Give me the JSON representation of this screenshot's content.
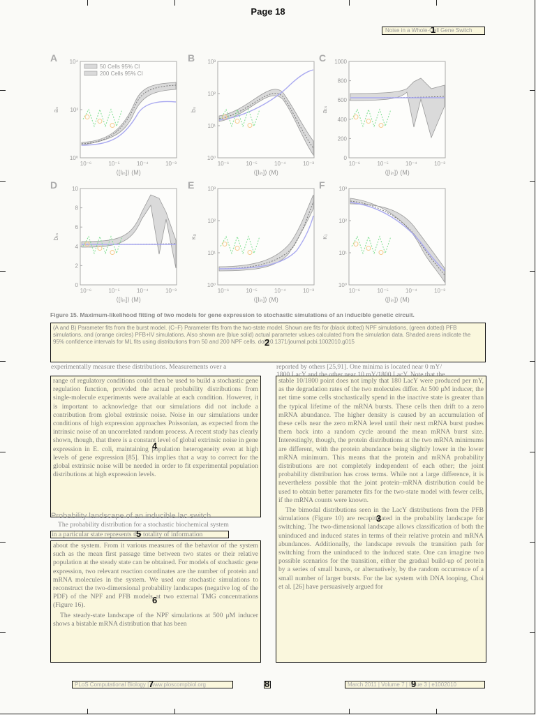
{
  "page": {
    "header": "Page 18",
    "running_title": "Noise in a Whole-Cell Gene Switch"
  },
  "figure": {
    "panels": [
      {
        "label": "A",
        "ylabel": "aₛ",
        "yticks": [
          "10⁴",
          "10²",
          "10⁰"
        ],
        "xlabel": "⟨[Iᵢₙ]⟩ (M)",
        "xticks": [
          "10⁻⁶",
          "10⁻⁵",
          "10⁻⁴",
          "10⁻³"
        ],
        "legend": [
          "50 Cells 95% CI",
          "200 Cells 95% CI"
        ]
      },
      {
        "label": "B",
        "ylabel": "bₛ",
        "yticks": [
          "10³",
          "10²",
          "10¹",
          "10⁰"
        ],
        "xlabel": "⟨[Iᵢₙ]⟩ (M)",
        "xticks": [
          "10⁻⁶",
          "10⁻⁵",
          "10⁻⁴",
          "10⁻³"
        ]
      },
      {
        "label": "C",
        "ylabel": "aₜₛ",
        "yticks": [
          "1000",
          "800",
          "600",
          "400",
          "200",
          "0"
        ],
        "xlabel": "⟨[Iᵢₙ]⟩ (M)",
        "xticks": [
          "10⁻⁶",
          "10⁻⁵",
          "10⁻⁴",
          "10⁻³"
        ]
      },
      {
        "label": "D",
        "ylabel": "bₜₛ",
        "yticks": [
          "10",
          "8",
          "6",
          "4",
          "2",
          "0"
        ],
        "xlabel": "⟨[Iᵢₙ]⟩ (M)",
        "xticks": [
          "10⁻⁶",
          "10⁻⁵",
          "10⁻⁴",
          "10⁻³"
        ]
      },
      {
        "label": "E",
        "ylabel": "κ₀",
        "yticks": [
          "10³",
          "10²",
          "10¹",
          "10⁰"
        ],
        "xlabel": "⟨[Iᵢₙ]⟩ (M)",
        "xticks": [
          "10⁻⁶",
          "10⁻⁵",
          "10⁻⁴",
          "10⁻³"
        ]
      },
      {
        "label": "F",
        "ylabel": "κ₁",
        "yticks": [
          "10³",
          "10²",
          "10¹",
          "10⁰"
        ],
        "xlabel": "⟨[Iᵢₙ]⟩ (M)",
        "xticks": [
          "10⁻⁶",
          "10⁻⁵",
          "10⁻⁴",
          "10⁻³"
        ]
      }
    ],
    "caption_title": "Figure 15. Maximum-likelihood fitting of two models for gene expression to stochastic simulations of an inducible genetic circuit.",
    "caption_body": "(A and B) Parameter fits from the burst model. (C–F) Parameter fits from the two-state model. Shown are fits for (black dotted) NPF simulations, (green dotted) PFB simulations, and (orange circles) PFB+IV simulations. Also shown are (blue solid) actual parameter values calculated from the simulation data. Shaded areas indicate the 95% confidence intervals for ML fits using distributions from 50 and 200 NPF cells.",
    "doi": "doi:10.1371/journal.pcbi.1002010.g015"
  },
  "text": {
    "left_top_line": "experimentally measure these distributions. Measurements over a",
    "right_top_line": "reported by others [25,91]. One minima is located near 0 mY/",
    "right_second_line": "1800 LacY and the other near 10 mY/1800 LacY. Note that the",
    "left_column_p1": "range of regulatory conditions could then be used to build a stochastic gene regulation function, provided the actual probability distributions from single-molecule experiments were available at each condition. However, it is important to acknowledge that our simulations did not include a contribution from global extrinsic noise. Noise in our simulations under conditions of high expression approaches Poissonian, as expected from the intrinsic noise of an uncorrelated random process. A recent study has clearly shown, though, that there is a constant level of global extrinsic noise in gene expression in E. coli, maintaining population heterogeneity even at high levels of gene expression [85]. This implies that a way to correct for the global extrinsic noise will be needed in order to fit experimental population distributions at high expression levels.",
    "section_heading": "Probability landscape of an inducible lac switch",
    "left_column_p2_first": "The probability distribution for a stochastic biochemical system",
    "left_column_p2_second": "in a particular state represents the totality of information",
    "left_column_p2_rest": "about the system. From it various measures of the behavior of the system such as the mean first passage time between two states or their relative population at the steady state can be obtained. For models of stochastic gene expression, two relevant reaction coordinates are the number of protein and mRNA molecules in the system. We used our stochastic simulations to reconstruct the two-dimensional probability landscapes (negative log of the PDF) of the NPF and PFB models at two external TMG concentrations (Figure 16).",
    "left_column_p3": "The steady-state landscape of the NPF simulations at 500 μM inducer shows a bistable mRNA distribution that has been",
    "right_column_p1": "stable 10/1800 point does not imply that 180 LacY were produced per mY, as the degradation rates of the two molecules differ. At 500 μM inducer, the net time some cells stochastically spend in the inactive state is greater than the typical lifetime of the mRNA bursts. These cells then drift to a zero mRNA abundance. The higher density is caused by an accumulation of these cells near the zero mRNA level until their next mRNA burst pushes them back into a random cycle around the mean mRNA burst size. Interestingly, though, the protein distributions at the two mRNA minimums are different, with the protein abundance being slightly lower in the lower mRNA minimum. This means that the protein and mRNA probability distributions are not completely independent of each other; the joint probability distribution has cross terms. While not a large difference, it is nevertheless possible that the joint protein–mRNA distribution could be used to obtain better parameter fits for the two-state model with fewer cells, if the mRNA counts were known.",
    "right_column_p2": "The bimodal distributions seen in the LacY distributions from the PFB simulations (Figure 10) are recapitulated in the probability landscape for switching. The two-dimensional landscape allows classification of both the uninduced and induced states in terms of their relative protein and mRNA abundances. Additionally, the landscape reveals the transition path for switching from the uninduced to the induced state. One can imagine two possible scenarios for the transition, either the gradual build-up of protein by a series of small bursts, or alternatively, by the random occurrence of a small number of larger bursts. For the lac system with DNA looping, Choi et al. [26] have persuasively argued for"
  },
  "footer": {
    "journal": "PLoS Computational Biology | www.ploscompbiol.org",
    "page_number": "18",
    "issue": "March 2011 | Volume 7 | Issue 3 | e1002010"
  },
  "box_labels": [
    "1",
    "2",
    "3",
    "4",
    "5",
    "6",
    "7",
    "8",
    "9"
  ],
  "colors": {
    "npf": "#777777",
    "pfb": "#7ddf8f",
    "pfbiv": "#f5c98a",
    "actual": "#a9a9f0",
    "ci_fill": "#dadada",
    "box_fill": "#faf6d7"
  }
}
